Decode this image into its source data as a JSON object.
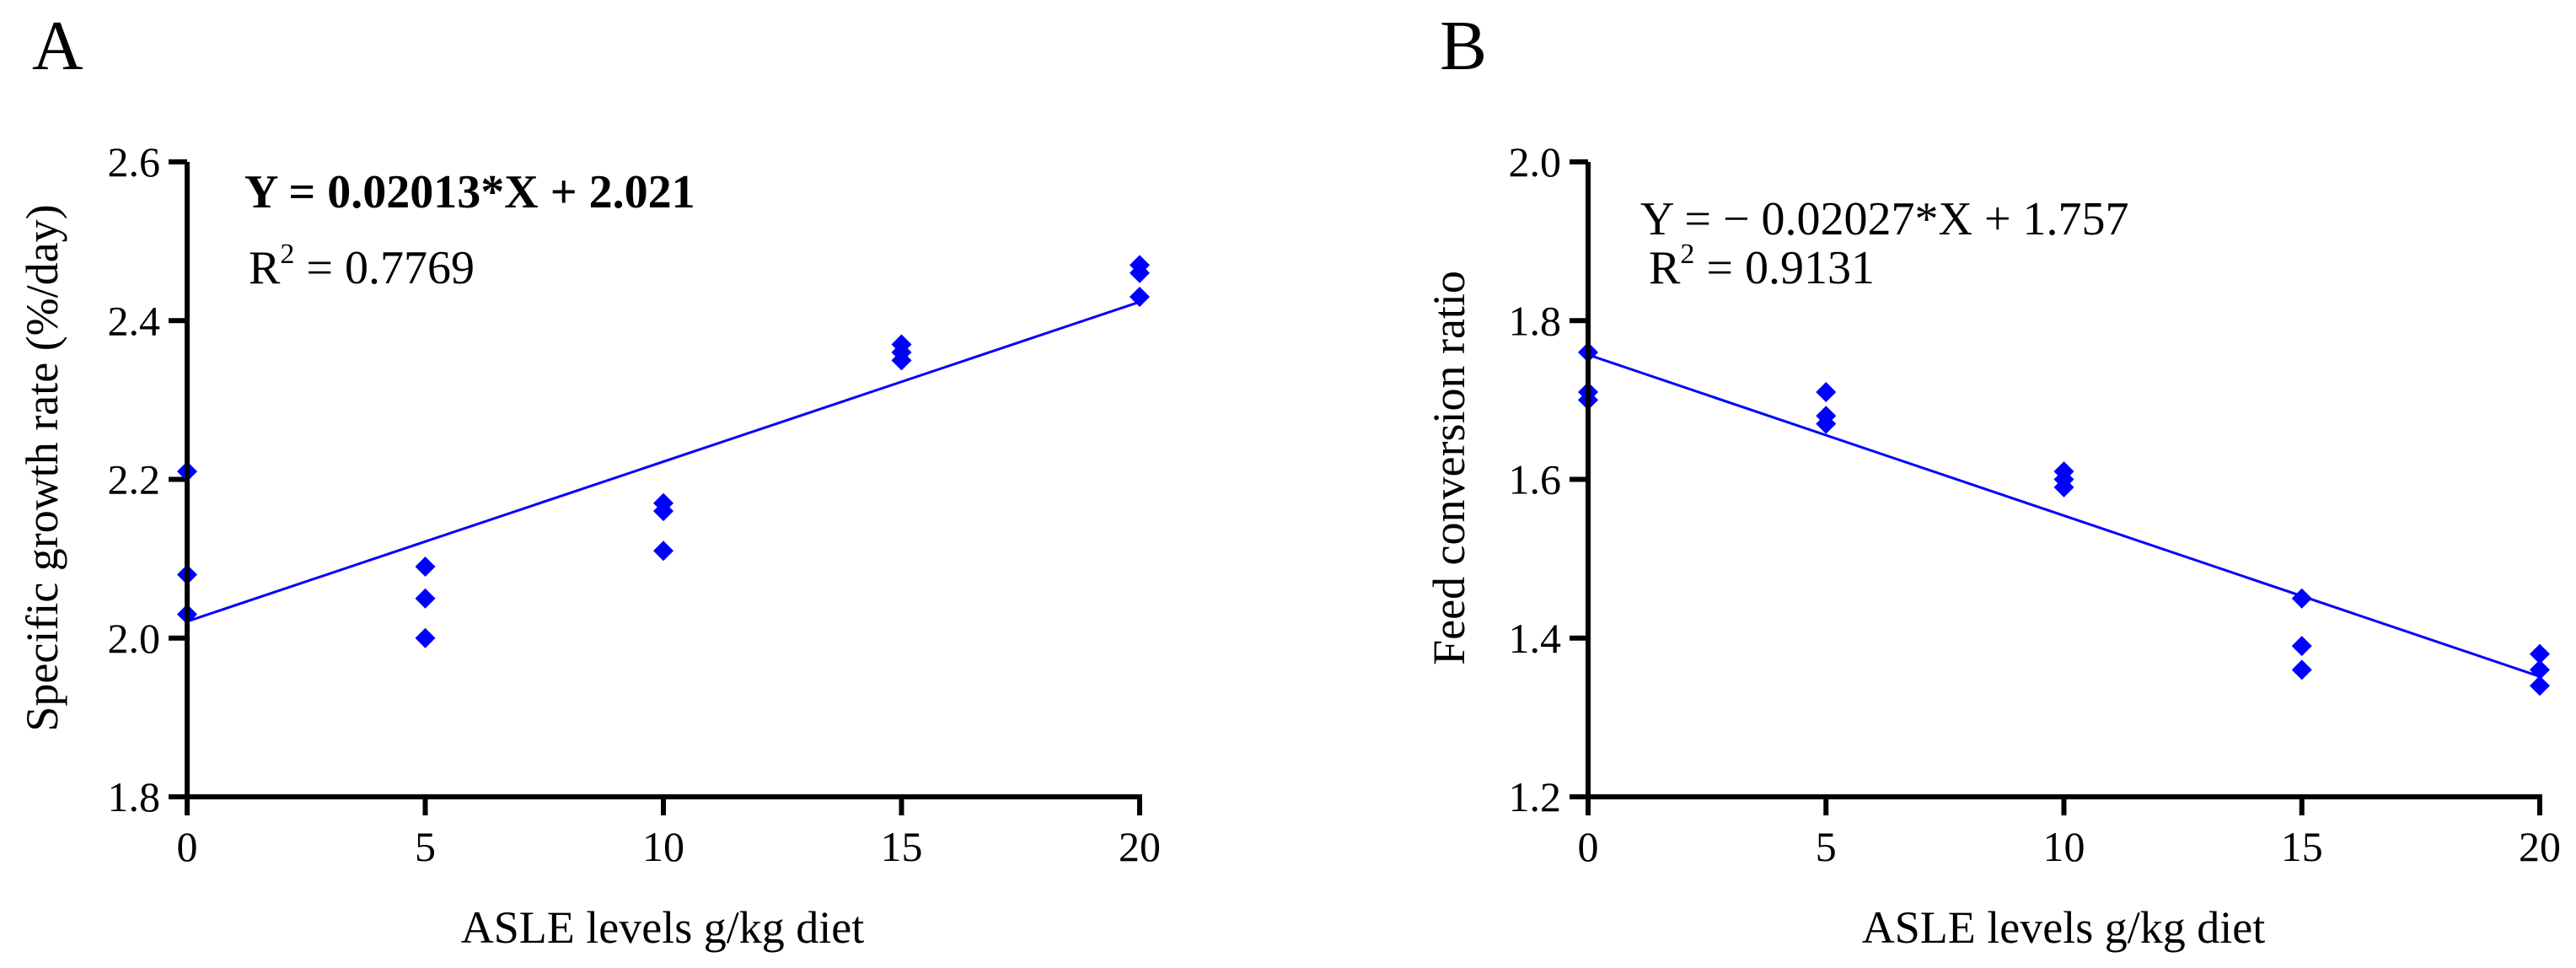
{
  "colors": {
    "series": "#0000ff",
    "axis": "#000000",
    "background": "#ffffff"
  },
  "chart_data": [
    {
      "type": "scatter",
      "panel": "A",
      "title": "",
      "xlabel": "ASLE levels g/kg diet",
      "ylabel": "Specific growth rate (%/day)",
      "xlim": [
        0,
        20
      ],
      "ylim": [
        1.8,
        2.6
      ],
      "xticks": [
        0,
        5,
        10,
        15,
        20
      ],
      "yticks": [
        1.8,
        2.0,
        2.2,
        2.4,
        2.6
      ],
      "xtick_labels": [
        "0",
        "5",
        "10",
        "15",
        "20"
      ],
      "ytick_labels": [
        "1.8",
        "2.0",
        "2.2",
        "2.4",
        "2.6"
      ],
      "grid": false,
      "points": [
        {
          "x": 0,
          "y": 2.21
        },
        {
          "x": 0,
          "y": 2.08
        },
        {
          "x": 0,
          "y": 2.03
        },
        {
          "x": 5,
          "y": 2.09
        },
        {
          "x": 5,
          "y": 2.05
        },
        {
          "x": 5,
          "y": 2.0
        },
        {
          "x": 10,
          "y": 2.17
        },
        {
          "x": 10,
          "y": 2.16
        },
        {
          "x": 10,
          "y": 2.11
        },
        {
          "x": 15,
          "y": 2.37
        },
        {
          "x": 15,
          "y": 2.36
        },
        {
          "x": 15,
          "y": 2.35
        },
        {
          "x": 20,
          "y": 2.47
        },
        {
          "x": 20,
          "y": 2.46
        },
        {
          "x": 20,
          "y": 2.43
        }
      ],
      "fit": {
        "slope": 0.02013,
        "intercept": 2.021
      },
      "equation": "Y = 0.02013*X + 2.021",
      "r2_prefix": "R",
      "r2_exp": "2",
      "r2_value": " = 0.7769"
    },
    {
      "type": "scatter",
      "panel": "B",
      "title": "",
      "xlabel": "ASLE levels g/kg diet",
      "ylabel": "Feed conversion ratio",
      "xlim": [
        0,
        20
      ],
      "ylim": [
        1.2,
        2.0
      ],
      "xticks": [
        0,
        5,
        10,
        15,
        20
      ],
      "yticks": [
        1.2,
        1.4,
        1.6,
        1.8,
        2.0
      ],
      "xtick_labels": [
        "0",
        "5",
        "10",
        "15",
        "20"
      ],
      "ytick_labels": [
        "1.2",
        "1.4",
        "1.6",
        "1.8",
        "2.0"
      ],
      "grid": false,
      "points": [
        {
          "x": 0,
          "y": 1.76
        },
        {
          "x": 0,
          "y": 1.71
        },
        {
          "x": 0,
          "y": 1.7
        },
        {
          "x": 5,
          "y": 1.71
        },
        {
          "x": 5,
          "y": 1.68
        },
        {
          "x": 5,
          "y": 1.67
        },
        {
          "x": 10,
          "y": 1.61
        },
        {
          "x": 10,
          "y": 1.6
        },
        {
          "x": 10,
          "y": 1.59
        },
        {
          "x": 15,
          "y": 1.45
        },
        {
          "x": 15,
          "y": 1.39
        },
        {
          "x": 15,
          "y": 1.36
        },
        {
          "x": 20,
          "y": 1.38
        },
        {
          "x": 20,
          "y": 1.36
        },
        {
          "x": 20,
          "y": 1.34
        }
      ],
      "fit": {
        "slope": -0.02027,
        "intercept": 1.757
      },
      "equation": "Y = − 0.02027*X + 1.757",
      "r2_prefix": "R",
      "r2_exp": "2",
      "r2_value": " = 0.9131"
    }
  ]
}
